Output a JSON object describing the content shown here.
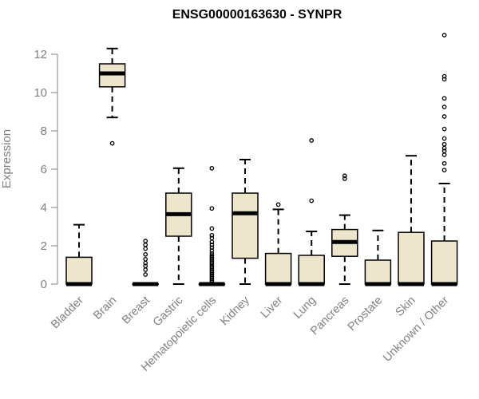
{
  "chart_data": {
    "type": "boxplot",
    "title": "ENSG00000163630 - SYNPR",
    "ylabel": "Expression",
    "xlabel": "",
    "ylim": [
      0,
      12
    ],
    "yticks": [
      0,
      2,
      4,
      6,
      8,
      10,
      12
    ],
    "grid": false,
    "colors": {
      "box_fill": "#ede6cc",
      "stroke": "#000000",
      "axis": "#808080",
      "median": "#000000"
    },
    "categories": [
      "Bladder",
      "Brain",
      "Breast",
      "Gastric",
      "Hematopoietic cells",
      "Kidney",
      "Liver",
      "Lung",
      "Pancreas",
      "Prostate",
      "Skin",
      "Unknown / Other"
    ],
    "boxes": [
      {
        "category": "Bladder",
        "whisker_low": 0,
        "q1": 0,
        "median": 0,
        "q3": 1.4,
        "whisker_high": 3.1,
        "outliers": []
      },
      {
        "category": "Brain",
        "whisker_low": 8.7,
        "q1": 10.3,
        "median": 11.0,
        "q3": 11.5,
        "whisker_high": 12.3,
        "outliers": [
          7.35
        ]
      },
      {
        "category": "Breast",
        "whisker_low": 0,
        "q1": 0,
        "median": 0,
        "q3": 0,
        "whisker_high": 0,
        "outliers": [
          0.5,
          0.75,
          0.95,
          1.1,
          1.3,
          1.55,
          1.85,
          2.05,
          2.25
        ]
      },
      {
        "category": "Gastric",
        "whisker_low": 0,
        "q1": 2.5,
        "median": 3.65,
        "q3": 4.75,
        "whisker_high": 6.05,
        "outliers": []
      },
      {
        "category": "Hematopoietic cells",
        "whisker_low": 0,
        "q1": 0,
        "median": 0,
        "q3": 0,
        "whisker_high": 0,
        "outliers": [
          0.1,
          0.2,
          0.3,
          0.4,
          0.5,
          0.6,
          0.7,
          0.8,
          0.9,
          1.0,
          1.1,
          1.2,
          1.3,
          1.4,
          1.5,
          1.6,
          1.75,
          1.9,
          2.05,
          2.2,
          2.4,
          2.55,
          2.9,
          3.95,
          6.05
        ]
      },
      {
        "category": "Kidney",
        "whisker_low": 0,
        "q1": 1.35,
        "median": 3.7,
        "q3": 4.75,
        "whisker_high": 6.5,
        "outliers": []
      },
      {
        "category": "Liver",
        "whisker_low": 0,
        "q1": 0,
        "median": 0,
        "q3": 1.6,
        "whisker_high": 3.9,
        "outliers": [
          4.15
        ]
      },
      {
        "category": "Lung",
        "whisker_low": 0,
        "q1": 0,
        "median": 0,
        "q3": 1.5,
        "whisker_high": 2.75,
        "outliers": [
          4.35,
          7.5
        ]
      },
      {
        "category": "Pancreas",
        "whisker_low": 0,
        "q1": 1.45,
        "median": 2.2,
        "q3": 2.85,
        "whisker_high": 3.6,
        "outliers": [
          5.5,
          5.65
        ]
      },
      {
        "category": "Prostate",
        "whisker_low": 0,
        "q1": 0,
        "median": 0,
        "q3": 1.25,
        "whisker_high": 2.8,
        "outliers": []
      },
      {
        "category": "Skin",
        "whisker_low": 0,
        "q1": 0,
        "median": 0,
        "q3": 2.7,
        "whisker_high": 6.7,
        "outliers": []
      },
      {
        "category": "Unknown / Other",
        "whisker_low": 0,
        "q1": 0,
        "median": 0,
        "q3": 2.25,
        "whisker_high": 5.25,
        "outliers": [
          5.95,
          6.3,
          6.75,
          6.95,
          7.1,
          7.3,
          7.6,
          8.1,
          8.75,
          9.25,
          9.7,
          10.7,
          10.85,
          13.0
        ]
      }
    ]
  }
}
